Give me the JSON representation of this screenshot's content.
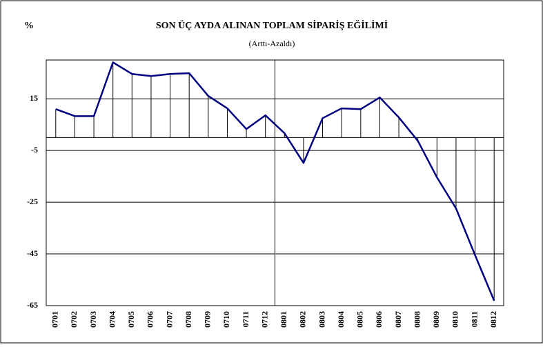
{
  "chart_data": {
    "type": "line",
    "title": "SON ÜÇ AYDA ALINAN TOPLAM SİPARİŞ EĞİLİMİ",
    "subtitle": "(Arttı-Azaldı)",
    "y_label": "%",
    "categories": [
      "0701",
      "0702",
      "0703",
      "0704",
      "0705",
      "0706",
      "0707",
      "0708",
      "0709",
      "0710",
      "0711",
      "0712",
      "0801",
      "0802",
      "0803",
      "0804",
      "0805",
      "0806",
      "0807",
      "0808",
      "0809",
      "0810",
      "0811",
      "0812"
    ],
    "series": [
      {
        "name": "Sipariş",
        "color": "#000080",
        "values": [
          11,
          8.3,
          8.3,
          29.1,
          24.6,
          23.8,
          24.6,
          24.9,
          16.1,
          11.3,
          3.3,
          8.6,
          1.7,
          -9.8,
          7.5,
          11.3,
          11,
          15.5,
          7.8,
          -1.3,
          -15.4,
          -27.4,
          -45.5,
          -63.1
        ]
      }
    ],
    "ylim": [
      -65,
      30
    ],
    "yticks": [
      15,
      -5,
      -25,
      -45,
      -65
    ],
    "grid": true
  }
}
